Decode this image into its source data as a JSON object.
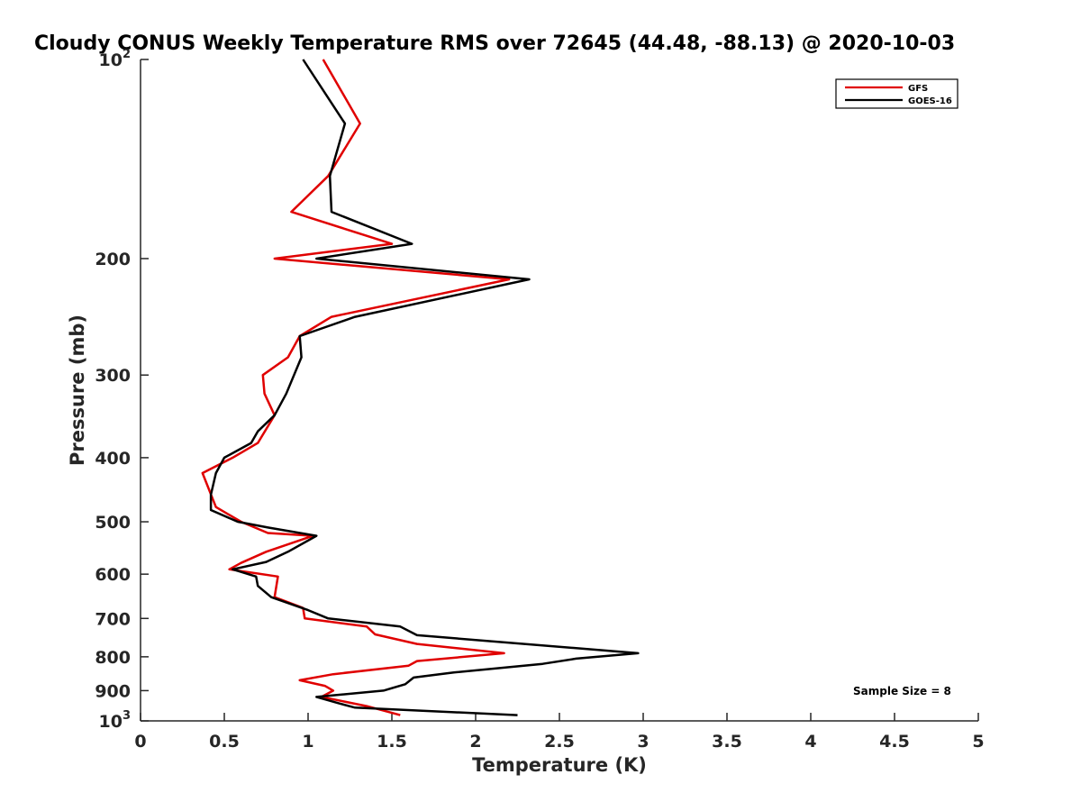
{
  "chart_data": {
    "type": "line",
    "title": "Cloudy CONUS Weekly Temperature RMS over 72645 (44.48, -88.13) @ 2020-10-03",
    "xlabel": "Temperature (K)",
    "ylabel": "Pressure (mb)",
    "xlim": [
      0,
      5
    ],
    "ylim": [
      100,
      1000
    ],
    "y_scale": "log",
    "y_reversed": true,
    "xticks": [
      "0",
      "0.5",
      "1",
      "1.5",
      "2",
      "2.5",
      "3",
      "3.5",
      "4",
      "4.5",
      "5"
    ],
    "yticks": [
      {
        "value": 100,
        "base": "10",
        "exp": "2"
      },
      {
        "value": 200,
        "label": "200"
      },
      {
        "value": 300,
        "label": "300"
      },
      {
        "value": 400,
        "label": "400"
      },
      {
        "value": 500,
        "label": "500"
      },
      {
        "value": 600,
        "label": "600"
      },
      {
        "value": 700,
        "label": "700"
      },
      {
        "value": 800,
        "label": "800"
      },
      {
        "value": 900,
        "label": "900"
      },
      {
        "value": 1000,
        "base": "10",
        "exp": "3"
      }
    ],
    "grid": false,
    "legend_position": "top-right",
    "annotation": "Sample Size = 8",
    "series": [
      {
        "name": "GFS",
        "color": "#e00000",
        "points": [
          [
            1.09,
            100
          ],
          [
            1.31,
            125
          ],
          [
            1.12,
            150
          ],
          [
            0.9,
            170
          ],
          [
            1.5,
            190
          ],
          [
            0.8,
            200
          ],
          [
            2.2,
            215
          ],
          [
            1.14,
            245
          ],
          [
            0.95,
            262
          ],
          [
            0.88,
            282
          ],
          [
            0.73,
            300
          ],
          [
            0.74,
            320
          ],
          [
            0.8,
            345
          ],
          [
            0.7,
            380
          ],
          [
            0.55,
            400
          ],
          [
            0.37,
            422
          ],
          [
            0.45,
            475
          ],
          [
            0.6,
            500
          ],
          [
            0.76,
            520
          ],
          [
            1.03,
            525
          ],
          [
            0.75,
            555
          ],
          [
            0.6,
            577
          ],
          [
            0.53,
            590
          ],
          [
            0.82,
            605
          ],
          [
            0.8,
            650
          ],
          [
            0.97,
            675
          ],
          [
            0.98,
            700
          ],
          [
            1.35,
            720
          ],
          [
            1.4,
            740
          ],
          [
            1.65,
            765
          ],
          [
            2.17,
            790
          ],
          [
            1.65,
            812
          ],
          [
            1.6,
            825
          ],
          [
            1.15,
            850
          ],
          [
            0.95,
            868
          ],
          [
            1.1,
            885
          ],
          [
            1.15,
            900
          ],
          [
            1.08,
            920
          ],
          [
            1.35,
            950
          ],
          [
            1.55,
            980
          ]
        ]
      },
      {
        "name": "GOES-16",
        "color": "#000000",
        "points": [
          [
            0.97,
            100
          ],
          [
            1.22,
            125
          ],
          [
            1.13,
            150
          ],
          [
            1.14,
            170
          ],
          [
            1.62,
            190
          ],
          [
            1.05,
            200
          ],
          [
            2.32,
            215
          ],
          [
            1.28,
            245
          ],
          [
            0.95,
            262
          ],
          [
            0.96,
            282
          ],
          [
            0.87,
            320
          ],
          [
            0.8,
            345
          ],
          [
            0.7,
            365
          ],
          [
            0.66,
            380
          ],
          [
            0.5,
            400
          ],
          [
            0.45,
            422
          ],
          [
            0.42,
            455
          ],
          [
            0.42,
            480
          ],
          [
            0.58,
            500
          ],
          [
            0.76,
            510
          ],
          [
            1.05,
            525
          ],
          [
            0.88,
            555
          ],
          [
            0.75,
            575
          ],
          [
            0.55,
            590
          ],
          [
            0.69,
            605
          ],
          [
            0.7,
            625
          ],
          [
            0.78,
            650
          ],
          [
            1.0,
            680
          ],
          [
            1.12,
            700
          ],
          [
            1.55,
            720
          ],
          [
            1.65,
            742
          ],
          [
            2.97,
            790
          ],
          [
            2.6,
            805
          ],
          [
            2.4,
            820
          ],
          [
            1.87,
            845
          ],
          [
            1.63,
            860
          ],
          [
            1.58,
            880
          ],
          [
            1.45,
            900
          ],
          [
            1.05,
            920
          ],
          [
            1.18,
            940
          ],
          [
            1.28,
            955
          ],
          [
            2.25,
            980
          ]
        ]
      }
    ]
  }
}
